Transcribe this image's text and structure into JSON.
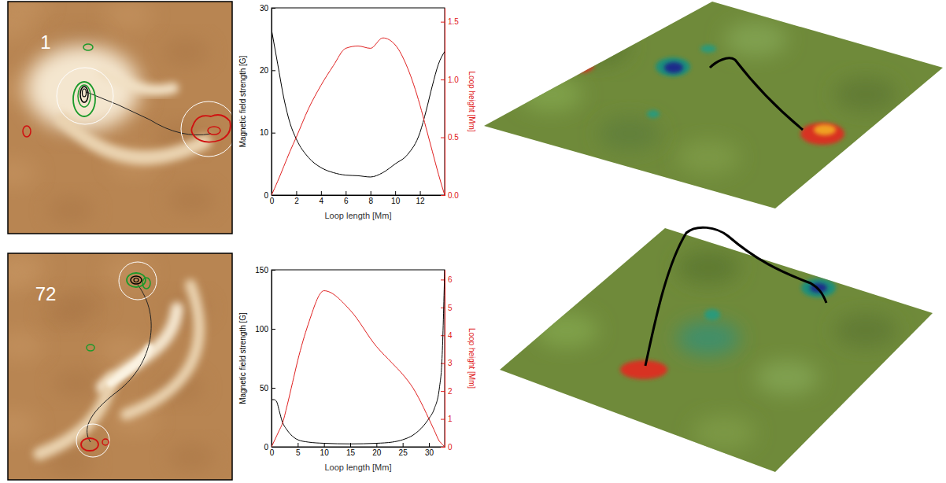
{
  "chart_data": [
    {
      "type": "line",
      "xlabel": "Loop length [Mm]",
      "ylabel": "Magnetic field strength [G]",
      "y2label": "Loop height [Mm]",
      "x": [
        0,
        0.5,
        1,
        1.5,
        2,
        3,
        4,
        5,
        6,
        7,
        8,
        9,
        10,
        11,
        12,
        12.5,
        13,
        13.5,
        14
      ],
      "series": [
        {
          "color": "#000000",
          "values": [
            26.5,
            21,
            15.5,
            11.5,
            9,
            6,
            4.4,
            3.6,
            3.2,
            3.1,
            2.9,
            3.6,
            5,
            6.5,
            10,
            13.5,
            17.5,
            21,
            23
          ]
        },
        {
          "color": "#e02020",
          "axis": "y2",
          "values": [
            0,
            0.12,
            0.25,
            0.38,
            0.5,
            0.75,
            0.95,
            1.12,
            1.27,
            1.29,
            1.27,
            1.36,
            1.3,
            1.1,
            0.78,
            0.58,
            0.38,
            0.18,
            0
          ]
        }
      ],
      "xlim": [
        0,
        14
      ],
      "xticks": [
        0,
        2,
        4,
        6,
        8,
        10,
        12
      ],
      "ylim": [
        0,
        30
      ],
      "yticks": [
        0,
        10,
        20,
        30
      ],
      "y2lim": [
        0,
        1.62
      ],
      "y2ticks": [
        {
          "value": 0,
          "label": "0.0"
        },
        {
          "value": 0.5,
          "label": "0.5"
        },
        {
          "value": 1,
          "label": "1.0"
        },
        {
          "value": 1.5,
          "label": "1.5"
        }
      ]
    },
    {
      "type": "line",
      "xlabel": "Loop length [Mm]",
      "ylabel": "Magnetic field strength [G]",
      "y2label": "Loop height [Mm]",
      "x": [
        0,
        0.5,
        1,
        1.5,
        2,
        3,
        4,
        5,
        7,
        10,
        15,
        20,
        23,
        25,
        27,
        29,
        30,
        31,
        32,
        32.5,
        33
      ],
      "series": [
        {
          "color": "#000000",
          "values": [
            40,
            40,
            38,
            30,
            22,
            14,
            9,
            6,
            4,
            3,
            2.5,
            3,
            4,
            6,
            10,
            18,
            24,
            32,
            50,
            75,
            150
          ]
        },
        {
          "color": "#e02020",
          "axis": "y2",
          "values": [
            0,
            0.2,
            0.4,
            0.6,
            0.8,
            1.5,
            2.3,
            3.1,
            4.4,
            5.6,
            4.9,
            3.6,
            3.0,
            2.6,
            2.1,
            1.4,
            1.0,
            0.6,
            0.2,
            0.1,
            0
          ]
        }
      ],
      "xlim": [
        0,
        33
      ],
      "xticks": [
        0,
        5,
        10,
        15,
        20,
        25,
        30
      ],
      "ylim": [
        0,
        150
      ],
      "yticks": [
        0,
        50,
        100,
        150
      ],
      "y2lim": [
        0,
        6.35
      ],
      "y2ticks": [
        0,
        1,
        2,
        3,
        4,
        5,
        6
      ]
    }
  ],
  "panels": [
    {
      "label": "1"
    },
    {
      "label": "72"
    }
  ]
}
